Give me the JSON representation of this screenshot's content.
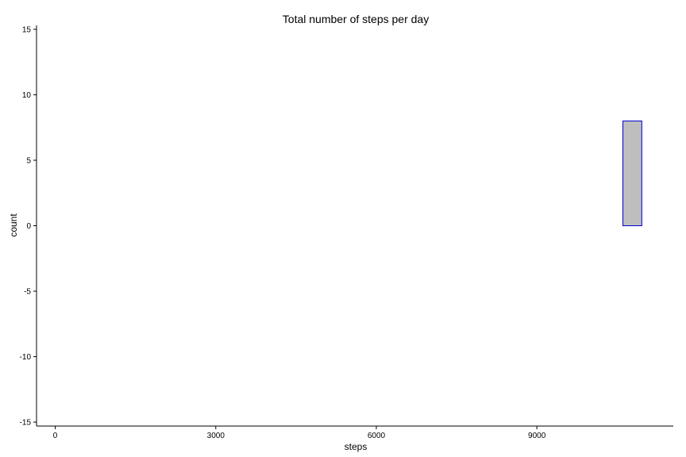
{
  "chart_data": {
    "type": "bar",
    "title": "Total number of steps per day",
    "xlabel": "steps",
    "ylabel": "count",
    "xlim": [
      -350,
      11550
    ],
    "ylim": [
      -15.3,
      15.3
    ],
    "xticks": [
      0,
      3000,
      6000,
      9000
    ],
    "yticks": [
      -15,
      -10,
      -5,
      0,
      5,
      10,
      15
    ],
    "bin_width": 353.6,
    "bins": [
      {
        "x_start": -353.6,
        "x_end": 0,
        "count": 0
      },
      {
        "x_start": 353.6,
        "x_end": 10608,
        "count": 0
      },
      {
        "x_start": 10608,
        "x_end": 10961.6,
        "count": 8
      }
    ],
    "grid": false,
    "colors": {
      "fill": "#bebebe",
      "outline": "#0000cc"
    }
  }
}
